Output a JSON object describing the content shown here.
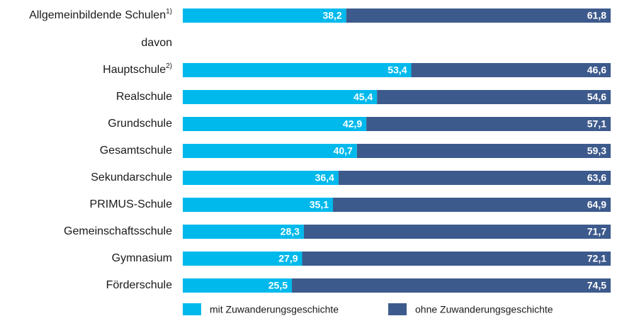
{
  "chart_data": {
    "type": "stacked_bar_horizontal",
    "categories": [
      "Allgemeinbildende Schulen",
      "davon",
      "Hauptschule",
      "Realschule",
      "Grundschule",
      "Gesamtschule",
      "Sekundarschule",
      "PRIMUS-Schule",
      "Gemeinschaftsschule",
      "Gymnasium",
      "Förderschule"
    ],
    "category_notes": [
      "1)",
      null,
      "2)",
      null,
      null,
      null,
      null,
      null,
      null,
      null,
      null
    ],
    "xlim": [
      0,
      100
    ],
    "series": [
      {
        "name": "mit Zuwanderungsgeschichte",
        "color": "#00b9ec",
        "values": [
          38.2,
          null,
          53.4,
          45.4,
          42.9,
          40.7,
          36.4,
          35.1,
          28.3,
          27.9,
          25.5
        ],
        "value_labels": [
          "38,2",
          null,
          "53,4",
          "45,4",
          "42,9",
          "40,7",
          "36,4",
          "35,1",
          "28,3",
          "27,9",
          "25,5"
        ]
      },
      {
        "name": "ohne Zuwanderungsgeschichte",
        "color": "#3d5a8c",
        "values": [
          61.8,
          null,
          46.6,
          54.6,
          57.1,
          59.3,
          63.6,
          64.9,
          71.7,
          72.1,
          74.5
        ],
        "value_labels": [
          "61,8",
          null,
          "46,6",
          "54,6",
          "57,1",
          "59,3",
          "63,6",
          "64,9",
          "71,7",
          "72,1",
          "74,5"
        ]
      }
    ],
    "legend": "bottom"
  }
}
